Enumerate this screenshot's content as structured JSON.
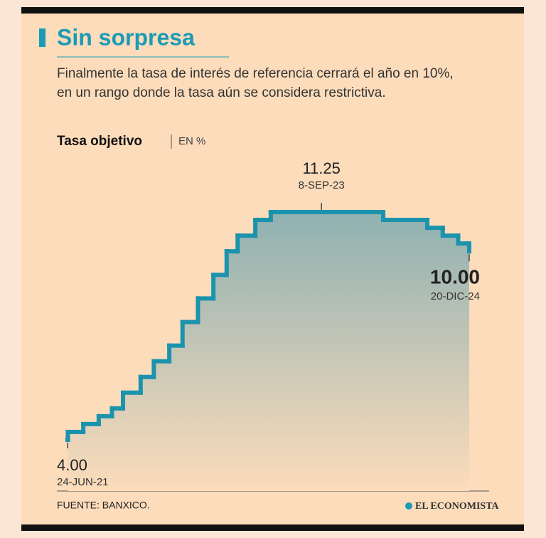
{
  "chart_data": {
    "type": "step",
    "title": "Sin sorpresa",
    "subtitle": [
      "Finalmente la tasa de interés de referencia cerrará el año en 10%,",
      "en un rango donde la tasa aún se considera restrictiva."
    ],
    "y_label": "Tasa objetivo",
    "y_unit": "EN %",
    "source": "FUENTE: BANXICO.",
    "brand": "EL ECONOMISTA",
    "color": "#1b93ad",
    "x": [
      "2021-06-24",
      "2021-06-25",
      "2021-08-13",
      "2021-10-01",
      "2021-11-12",
      "2021-12-17",
      "2022-02-11",
      "2022-03-25",
      "2022-05-13",
      "2022-06-24",
      "2022-08-12",
      "2022-09-30",
      "2022-11-11",
      "2022-12-16",
      "2023-02-10",
      "2023-03-31",
      "2024-03-22",
      "2024-08-09",
      "2024-09-27",
      "2024-11-15",
      "2024-12-20"
    ],
    "values": [
      4.0,
      4.25,
      4.5,
      4.75,
      5.0,
      5.5,
      6.0,
      6.5,
      7.0,
      7.75,
      8.5,
      9.25,
      10.0,
      10.5,
      11.0,
      11.25,
      11.0,
      10.75,
      10.5,
      10.25,
      10.0
    ],
    "xlim": [
      "2021-06-24",
      "2024-12-20"
    ],
    "ylim": [
      4,
      11.25
    ],
    "annotations": [
      {
        "x": "2021-06-24",
        "value": 4,
        "label": "4.00",
        "date_label": "24-JUN-21"
      },
      {
        "x": "2023-09-08",
        "value": 11.25,
        "label": "11.25",
        "date_label": "8-SEP-23"
      },
      {
        "x": "2024-12-20",
        "value": 10,
        "label": "10.00",
        "date_label": "20-DIC-24"
      }
    ]
  }
}
